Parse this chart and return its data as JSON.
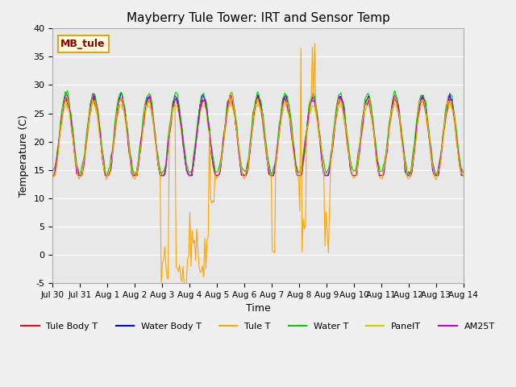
{
  "title": "Mayberry Tule Tower: IRT and Sensor Temp",
  "xlabel": "Time",
  "ylabel": "Temperature (C)",
  "ylim": [
    -5,
    40
  ],
  "xlim": [
    0,
    360
  ],
  "xtick_labels": [
    "Jul 30",
    "Jul 31",
    "Aug 1",
    "Aug 2",
    "Aug 3",
    "Aug 4",
    "Aug 5",
    "Aug 6",
    "Aug 7",
    "Aug 8",
    "Aug 9",
    "Aug 10",
    "Aug 11",
    "Aug 12",
    "Aug 13",
    "Aug 14"
  ],
  "ytick_values": [
    -5,
    0,
    5,
    10,
    15,
    20,
    25,
    30,
    35,
    40
  ],
  "legend_labels": [
    "Tule Body T",
    "Water Body T",
    "Tule T",
    "Water T",
    "PanelT",
    "AM25T"
  ],
  "legend_colors": [
    "#ff0000",
    "#0000ff",
    "#ffa500",
    "#00cc00",
    "#cccc00",
    "#cc00cc"
  ],
  "site_label": "MB_tule",
  "background_color": "#f0f0f0",
  "axes_bg_color": "#e8e8e8",
  "grid_color": "#ffffff",
  "n_points": 360,
  "hours_per_point": 1
}
